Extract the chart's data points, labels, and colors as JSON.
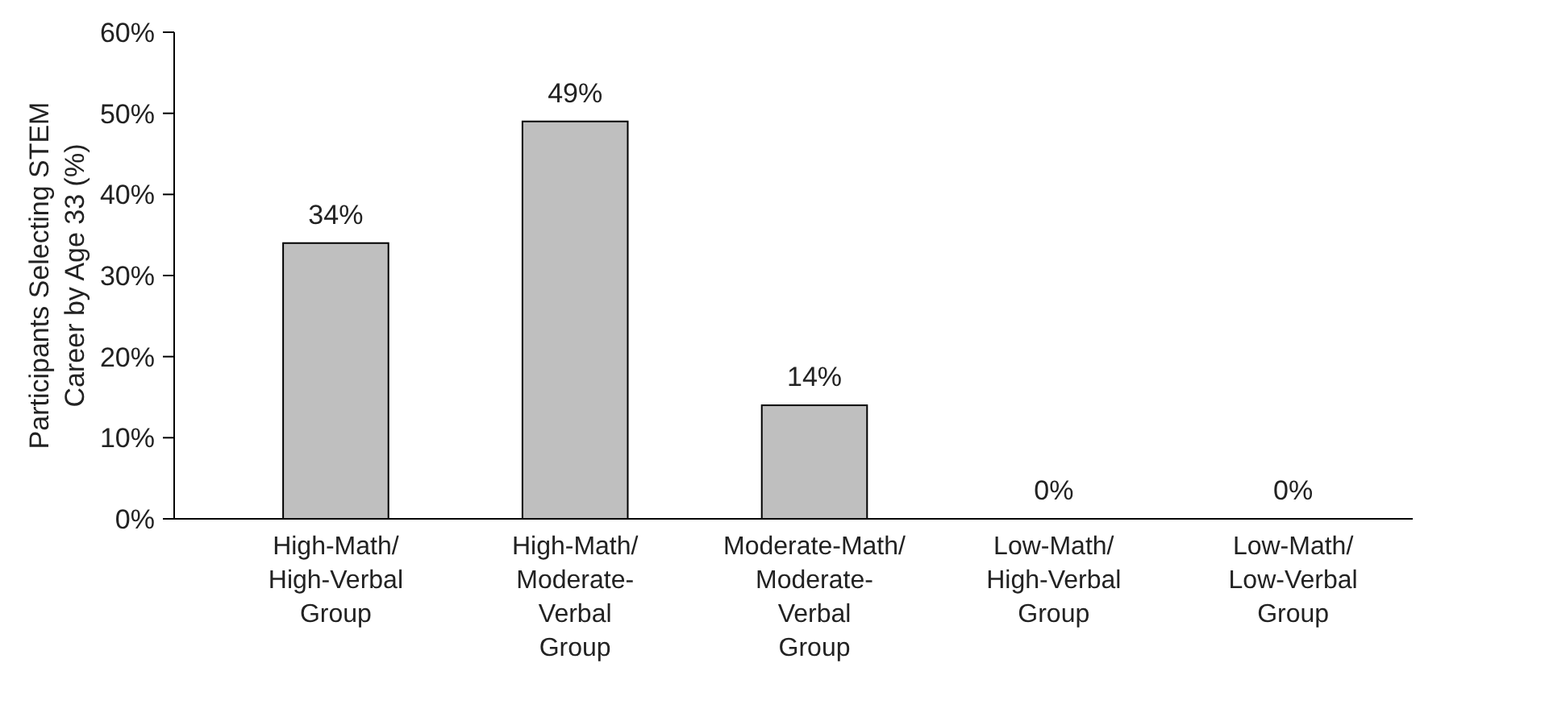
{
  "chart_data": {
    "type": "bar",
    "ylabel": "Participants Selecting STEM Career by Age 33 (%)",
    "categories": [
      "High-Math/High-Verbal Group",
      "High-Math/Moderate-Verbal Group",
      "Moderate-Math/Moderate-Verbal Group",
      "Low-Math/High-Verbal Group",
      "Low-Math/Low-Verbal Group"
    ],
    "values": [
      34,
      49,
      14,
      0,
      0
    ],
    "value_labels": [
      "34%",
      "49%",
      "14%",
      "0%",
      "0%"
    ],
    "color": "#bfbfbf",
    "ylim": [
      0,
      60
    ],
    "yticks": [
      {
        "value": 0,
        "label": "0%"
      },
      {
        "value": 10,
        "label": "10%"
      },
      {
        "value": 20,
        "label": "20%"
      },
      {
        "value": 30,
        "label": "30%"
      },
      {
        "value": 40,
        "label": "40%"
      },
      {
        "value": 50,
        "label": "50%"
      },
      {
        "value": 60,
        "label": "60%"
      }
    ],
    "grid": false
  }
}
